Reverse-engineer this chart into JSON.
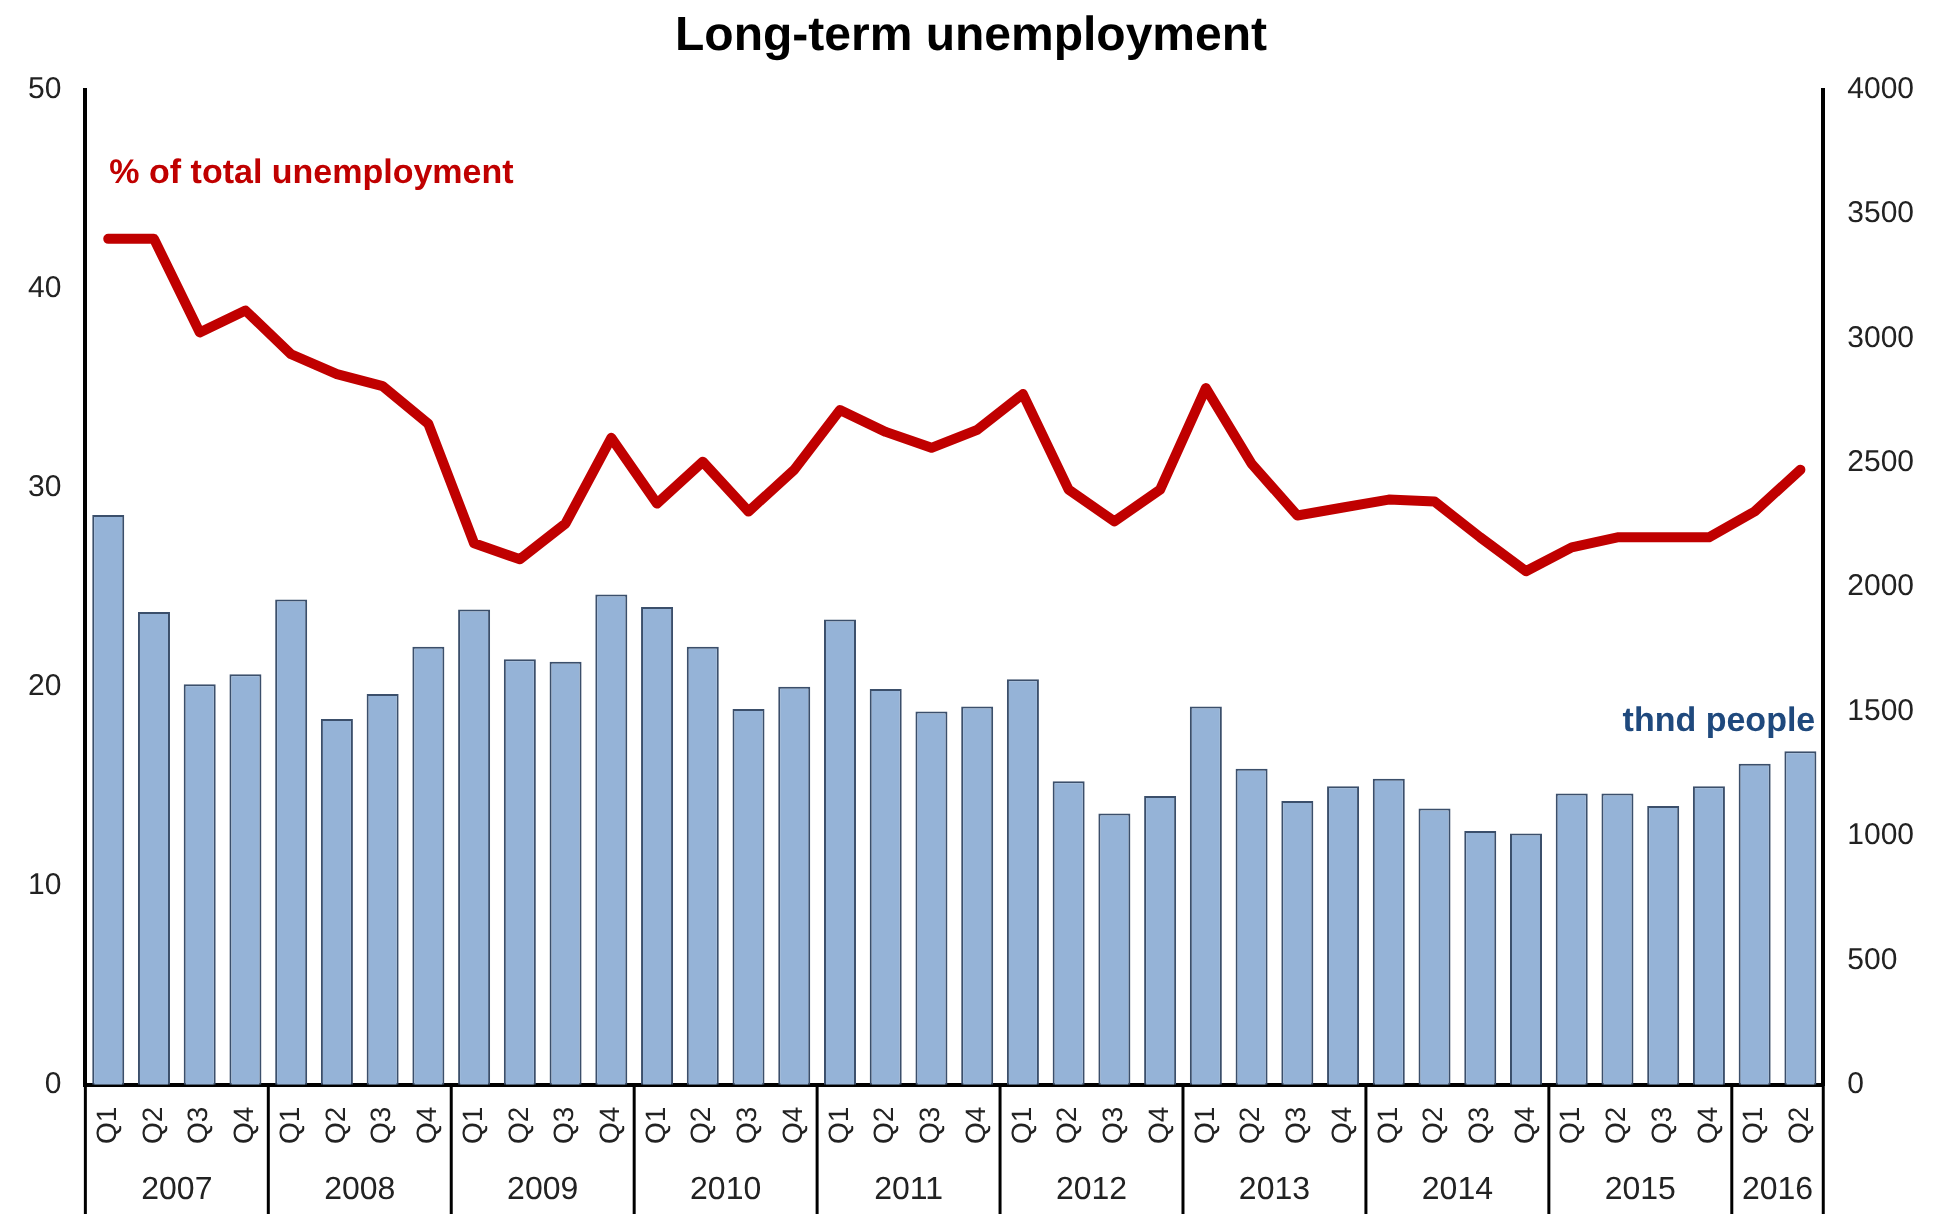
{
  "chart_data": {
    "type": "bar",
    "title": "Long-term unemployment",
    "categories": [
      "Q1",
      "Q2",
      "Q3",
      "Q4",
      "Q1",
      "Q2",
      "Q3",
      "Q4",
      "Q1",
      "Q2",
      "Q3",
      "Q4",
      "Q1",
      "Q2",
      "Q3",
      "Q4",
      "Q1",
      "Q2",
      "Q3",
      "Q4",
      "Q1",
      "Q2",
      "Q3",
      "Q4",
      "Q1",
      "Q2",
      "Q3",
      "Q4",
      "Q1",
      "Q2",
      "Q3",
      "Q4",
      "Q1",
      "Q2",
      "Q3",
      "Q4",
      "Q1",
      "Q2"
    ],
    "annotations": [
      "2007",
      "2008",
      "2009",
      "2010",
      "2011",
      "2012",
      "2013",
      "2014",
      "2015",
      "2016"
    ],
    "series": [
      {
        "name": "thnd people",
        "axis": "y2",
        "color": "#95b3d7",
        "values": [
          2290,
          1900,
          1610,
          1650,
          1950,
          1470,
          1570,
          1760,
          1910,
          1710,
          1700,
          1970,
          1920,
          1760,
          1510,
          1600,
          1870,
          1590,
          1500,
          1520,
          1630,
          1220,
          1090,
          1160,
          1520,
          1270,
          1140,
          1200,
          1230,
          1110,
          1020,
          1010,
          1170,
          1170,
          1120,
          1200,
          1290,
          1340
        ]
      },
      {
        "name": "% of total unemployment",
        "type": "line",
        "axis": "y",
        "color": "#c00000",
        "values": [
          42.5,
          42.5,
          37.8,
          38.9,
          36.7,
          35.7,
          35.1,
          33.2,
          27.2,
          26.4,
          28.2,
          32.5,
          29.2,
          31.3,
          28.8,
          30.9,
          33.9,
          32.8,
          32.0,
          32.9,
          34.7,
          29.9,
          28.3,
          29.9,
          35.0,
          31.2,
          28.6,
          29.0,
          29.4,
          29.3,
          27.5,
          25.8,
          27.0,
          27.5,
          27.5,
          27.5,
          28.8,
          30.9
        ]
      }
    ],
    "ylim": [
      0,
      50
    ],
    "yticks": [
      0,
      10,
      20,
      30,
      40,
      50
    ],
    "y2lim": [
      0,
      4000
    ],
    "y2ticks": [
      0,
      500,
      1000,
      1500,
      2000,
      2500,
      3000,
      3500,
      4000
    ],
    "grid": false,
    "legend": false,
    "marker": "none",
    "line_style": "solid"
  }
}
